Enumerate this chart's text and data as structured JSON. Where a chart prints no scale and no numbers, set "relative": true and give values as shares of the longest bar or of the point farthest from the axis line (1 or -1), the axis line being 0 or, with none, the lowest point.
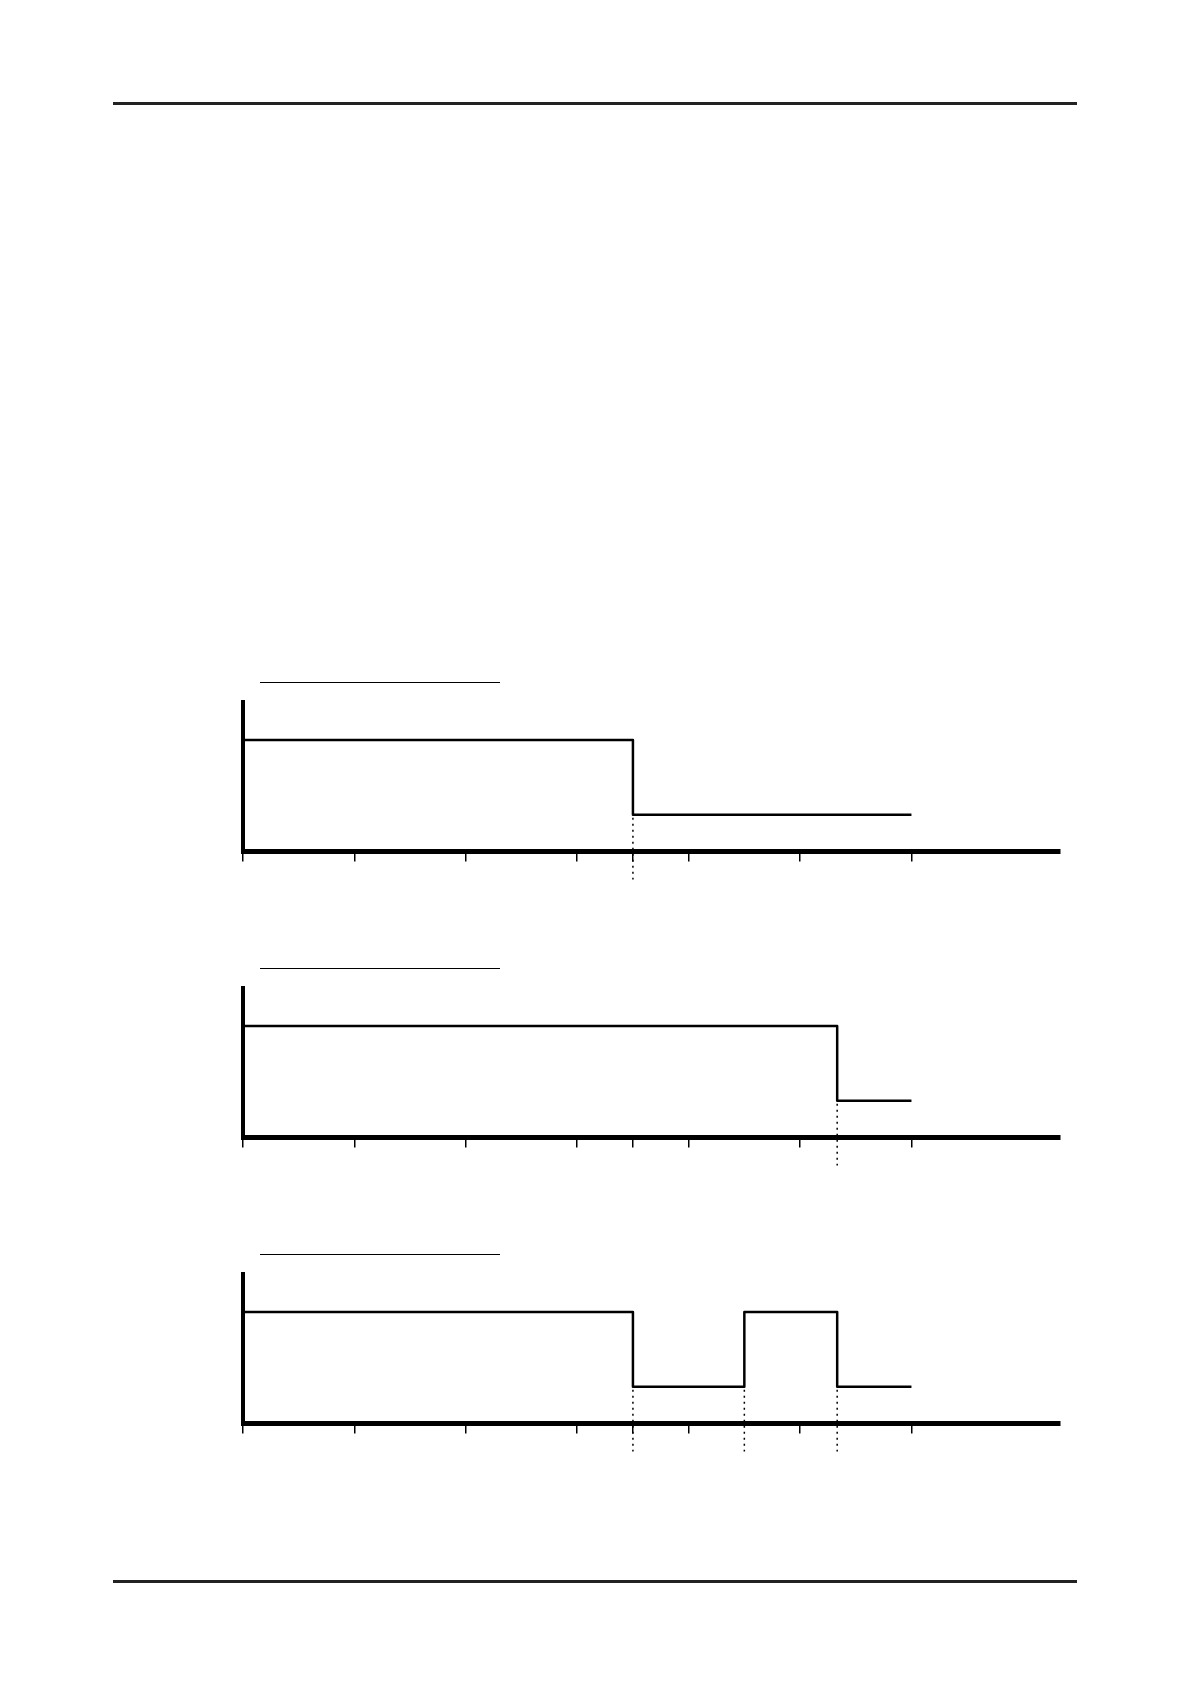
{
  "chart_data": [
    {
      "type": "step",
      "relative": true,
      "categories": [
        null,
        null,
        null,
        null,
        null,
        null,
        null,
        null,
        null,
        null,
        null,
        null,
        null,
        null,
        null,
        null,
        null,
        null,
        null,
        null,
        null,
        null,
        null,
        null,
        null,
        null,
        null,
        null,
        null,
        null,
        null,
        null,
        null,
        null,
        null,
        null,
        null,
        null,
        null,
        null,
        null,
        null,
        null,
        null,
        null
      ],
      "legend": false,
      "series": [
        {
          "color": "#000000",
          "values": [
            1,
            1,
            1,
            1,
            1,
            1,
            1,
            1,
            1,
            1,
            1,
            1,
            1,
            1,
            1,
            1,
            1,
            1,
            1,
            1,
            1,
            0.33,
            0.33,
            0.33,
            0.33,
            0.33,
            0.33,
            0.33,
            0.33,
            0.33,
            0.33,
            0.33,
            0.33,
            0.33,
            0.33,
            0.33,
            0.33,
            null,
            null,
            null,
            null,
            null,
            null,
            null,
            null
          ]
        }
      ]
    },
    {
      "type": "step",
      "relative": true,
      "categories": [
        null,
        null,
        null,
        null,
        null,
        null,
        null,
        null,
        null,
        null,
        null,
        null,
        null,
        null,
        null,
        null,
        null,
        null,
        null,
        null,
        null,
        null,
        null,
        null,
        null,
        null,
        null,
        null,
        null,
        null,
        null,
        null,
        null,
        null,
        null,
        null,
        null,
        null,
        null,
        null,
        null,
        null,
        null,
        null,
        null
      ],
      "legend": false,
      "series": [
        {
          "color": "#000000",
          "values": [
            1,
            1,
            1,
            1,
            1,
            1,
            1,
            1,
            1,
            1,
            1,
            1,
            1,
            1,
            1,
            1,
            1,
            1,
            1,
            1,
            1,
            1,
            1,
            1,
            1,
            1,
            1,
            1,
            1,
            1,
            1,
            1,
            0.33,
            0.33,
            0.33,
            0.33,
            0.33,
            null,
            null,
            null,
            null,
            null,
            null,
            null,
            null
          ]
        }
      ]
    },
    {
      "type": "step",
      "relative": true,
      "categories": [
        null,
        null,
        null,
        null,
        null,
        null,
        null,
        null,
        null,
        null,
        null,
        null,
        null,
        null,
        null,
        null,
        null,
        null,
        null,
        null,
        null,
        null,
        null,
        null,
        null,
        null,
        null,
        null,
        null,
        null,
        null,
        null,
        null,
        null,
        null,
        null,
        null,
        null,
        null,
        null,
        null,
        null,
        null,
        null,
        null
      ],
      "legend": false,
      "series": [
        {
          "color": "#000000",
          "values": [
            1,
            1,
            1,
            1,
            1,
            1,
            1,
            1,
            1,
            1,
            1,
            1,
            1,
            1,
            1,
            1,
            1,
            1,
            1,
            1,
            1,
            0.33,
            0.33,
            0.33,
            0.33,
            0.33,
            0.33,
            1,
            1,
            1,
            1,
            1,
            0.33,
            0.33,
            0.33,
            0.33,
            0.33,
            null,
            null,
            null,
            null,
            null,
            null,
            null,
            null
          ]
        }
      ]
    }
  ]
}
